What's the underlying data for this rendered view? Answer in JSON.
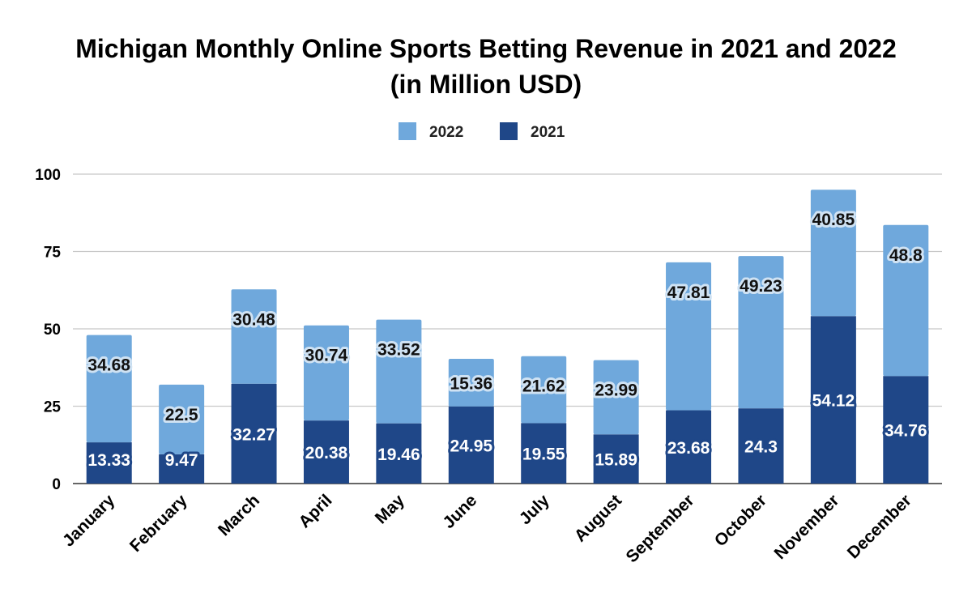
{
  "chart_data": {
    "type": "bar",
    "stacked": true,
    "title_line1": "Michigan Monthly Online Sports Betting Revenue in 2021 and 2022",
    "title_line2": "(in Million USD)",
    "xlabel": "",
    "ylabel": "",
    "ylim": [
      0,
      100
    ],
    "yticks": [
      0,
      25,
      50,
      75,
      100
    ],
    "grid": true,
    "legend_position": "top-center",
    "categories": [
      "January",
      "February",
      "March",
      "April",
      "May",
      "June",
      "July",
      "August",
      "September",
      "October",
      "November",
      "December"
    ],
    "series": [
      {
        "name": "2021",
        "color": "#1f4788",
        "values": [
          13.33,
          9.47,
          32.27,
          20.38,
          19.46,
          24.95,
          19.55,
          15.89,
          23.68,
          24.3,
          54.12,
          34.76
        ]
      },
      {
        "name": "2022",
        "color": "#6fa8dc",
        "values": [
          34.68,
          22.5,
          30.48,
          30.74,
          33.52,
          15.36,
          21.62,
          23.99,
          47.81,
          49.23,
          40.85,
          48.8
        ]
      }
    ],
    "legend_order": [
      "2022",
      "2021"
    ]
  }
}
